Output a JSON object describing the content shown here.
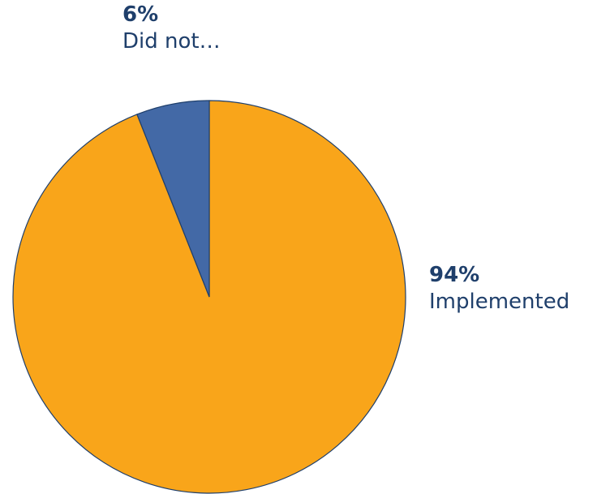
{
  "chart_data": {
    "type": "pie",
    "slices": [
      {
        "label": "Implemented",
        "value": 94,
        "display_percent": "94%",
        "color": "#f9a51a"
      },
      {
        "label": "Did not…",
        "value": 6,
        "display_percent": "6%",
        "color": "#4369a6"
      }
    ],
    "start_angle_deg": 0,
    "direction": "clockwise",
    "border_color": "#1f3f6b"
  }
}
